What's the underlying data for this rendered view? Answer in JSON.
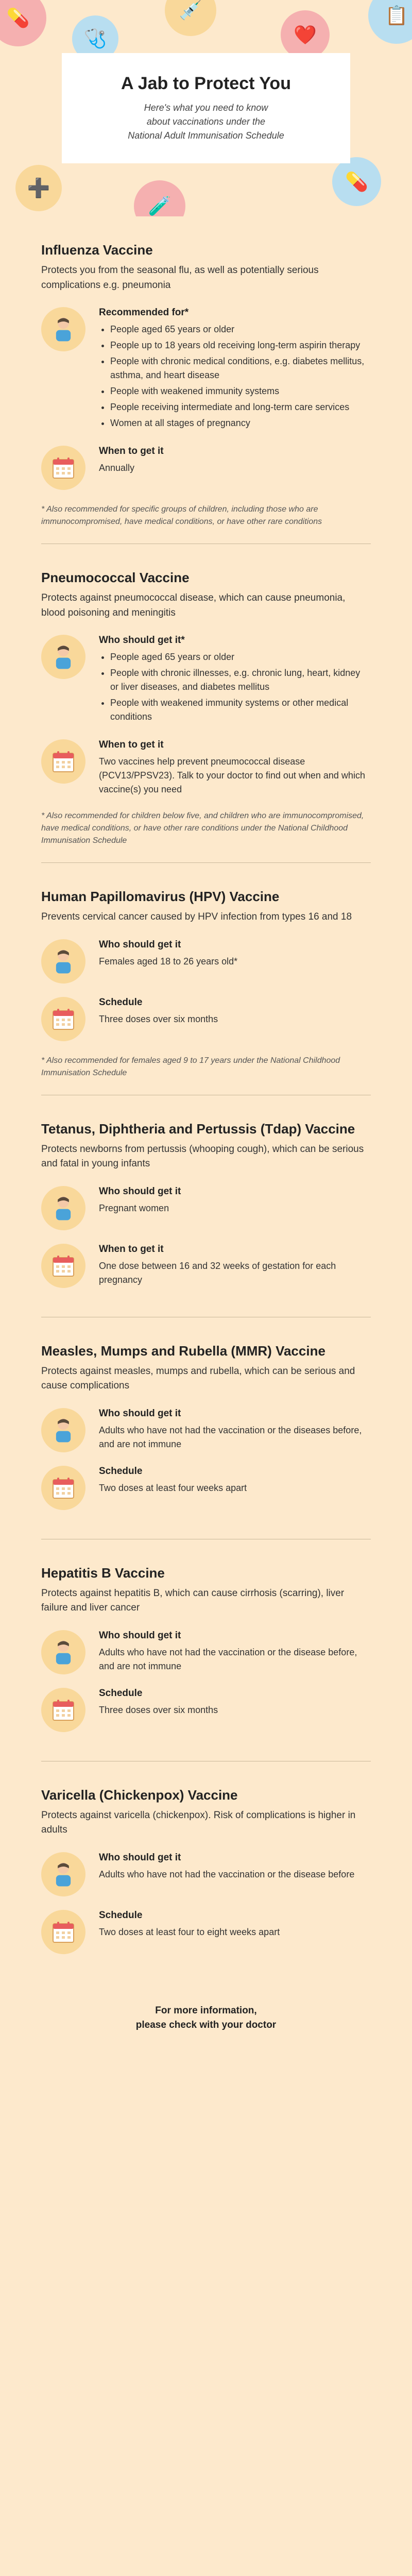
{
  "hero": {
    "title": "A Jab to Protect You",
    "subtitle_line1": "Here's what you need to know",
    "subtitle_line2": "about vaccinations under the",
    "subtitle_line3": "National Adult Immunisation Schedule"
  },
  "vaccines": [
    {
      "title": "Influenza Vaccine",
      "desc": "Protects you from the seasonal flu, as well as potentially serious complications e.g. pneumonia",
      "who_heading": "Recommended for*",
      "who_bullets": [
        "People aged 65 years or older",
        "People up to 18 years old receiving long-term aspirin therapy",
        "People with chronic medical conditions, e.g. diabetes mellitus, asthma, and heart disease",
        "People with weakened immunity systems",
        "People receiving intermediate and long-term care services",
        "Women at all stages of pregnancy"
      ],
      "when_heading": "When to get it",
      "when_body": "Annually",
      "footnote": "* Also recommended for specific groups of children, including those who are immunocompromised, have medical conditions, or have other rare conditions"
    },
    {
      "title": "Pneumococcal Vaccine",
      "desc": "Protects against pneumococcal disease, which can cause pneumonia, blood poisoning and meningitis",
      "who_heading": "Who should get it*",
      "who_bullets": [
        "People aged 65 years or older",
        "People with chronic illnesses, e.g. chronic lung, heart, kidney or liver diseases, and diabetes mellitus",
        "People with weakened immunity systems or other medical conditions"
      ],
      "when_heading": "When to get it",
      "when_body": "Two vaccines help prevent pneumococcal disease (PCV13/PPSV23). Talk to your doctor to find out when and which vaccine(s) you need",
      "footnote": "* Also recommended for children below five, and children who are immunocompromised, have medical conditions, or have other rare conditions under the National Childhood Immunisation Schedule"
    },
    {
      "title": "Human Papillomavirus (HPV) Vaccine",
      "desc": "Prevents cervical cancer caused by HPV infection from types 16 and 18",
      "who_heading": "Who should get it",
      "who_body": "Females aged 18 to 26 years old*",
      "when_heading": "Schedule",
      "when_body": "Three doses over six months",
      "footnote": "* Also recommended for females aged 9 to 17 years under the National Childhood Immunisation Schedule"
    },
    {
      "title": "Tetanus, Diphtheria and Pertussis (Tdap) Vaccine",
      "desc": "Protects newborns from pertussis (whooping cough), which can be serious and fatal in young infants",
      "who_heading": "Who should get it",
      "who_body": "Pregnant women",
      "when_heading": "When to get it",
      "when_body": "One dose between 16 and 32 weeks of gestation for each pregnancy"
    },
    {
      "title": "Measles, Mumps and Rubella (MMR) Vaccine",
      "desc": "Protects against measles, mumps and rubella, which can be serious and cause complications",
      "who_heading": "Who should get it",
      "who_body": "Adults who have not had the vaccination or the diseases before, and are not immune",
      "when_heading": "Schedule",
      "when_body": "Two doses at least four weeks apart"
    },
    {
      "title": "Hepatitis B Vaccine",
      "desc": "Protects against hepatitis B, which can cause cirrhosis (scarring), liver failure and liver cancer",
      "who_heading": "Who should get it",
      "who_body": "Adults who have not had the vaccination or the disease before, and are not immune",
      "when_heading": "Schedule",
      "when_body": "Three doses over six months"
    },
    {
      "title": "Varicella (Chickenpox) Vaccine",
      "desc": "Protects against varicella (chickenpox). Risk of complications is higher in adults",
      "who_heading": "Who should get it",
      "who_body": "Adults who have not had the vaccination or the disease before",
      "when_heading": "Schedule",
      "when_body": "Two doses at least four to eight weeks apart"
    }
  ],
  "footer_line1": "For more information,",
  "footer_line2": "please check with your doctor",
  "colors": {
    "page_bg": "#fde9cc",
    "card_bg": "#ffffff",
    "icon_bg": "#f9d89a",
    "divider": "#c9b89a",
    "hero_icons": [
      "#e85d5d",
      "#4aa3d9",
      "#f2a14a",
      "#e85d5d",
      "#4aa3d9",
      "#f2a14a",
      "#e85d5d"
    ]
  }
}
